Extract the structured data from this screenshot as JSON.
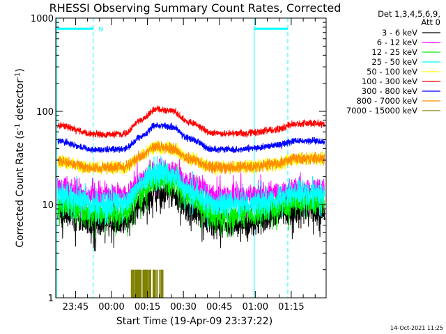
{
  "chart_data": {
    "type": "line",
    "title": "RHESSI Observing Summary Count Rates, Corrected",
    "xlabel": "Start Time (19-Apr-09 23:37:22)",
    "ylabel_main": "Corrected Count Rate (s",
    "ylabel_sup1": "-1",
    "ylabel_mid": " detector",
    "ylabel_sup2": "-1",
    "ylabel_end": ")",
    "yscale": "log",
    "ylim": [
      1,
      1000
    ],
    "xlim_minutes": [
      -15.63,
      97.2
    ],
    "x_ticks": [
      {
        "label": "23:45",
        "minutes": -7.37
      },
      {
        "label": "00:00",
        "minutes": 7.63
      },
      {
        "label": "00:15",
        "minutes": 22.63
      },
      {
        "label": "00:30",
        "minutes": 37.63
      },
      {
        "label": "00:45",
        "minutes": 52.63
      },
      {
        "label": "01:00",
        "minutes": 67.63
      },
      {
        "label": "01:15",
        "minutes": 82.63
      }
    ],
    "y_ticks": [
      {
        "label": "1",
        "value": 1
      },
      {
        "label": "10",
        "value": 10
      },
      {
        "label": "100",
        "value": 100
      },
      {
        "label": "1000",
        "value": 1000
      }
    ],
    "legend_header": [
      "Det 1,3,4,5,6,9,",
      "Att 0"
    ],
    "legend_placement": "right",
    "grid": false,
    "series": [
      {
        "name": "3 - 6 keV",
        "color": "#000000",
        "x": [
          -15,
          0,
          13,
          20,
          26,
          33,
          40,
          50,
          58,
          66,
          75,
          85,
          95
        ],
        "y": [
          8.0,
          6.5,
          6.5,
          10.5,
          13.5,
          13.0,
          9.0,
          6.2,
          6.2,
          6.4,
          7.5,
          8.5,
          8.5
        ]
      },
      {
        "name": "6 - 12 keV",
        "color": "#ff00ff",
        "x": [
          -15,
          0,
          13,
          20,
          26,
          33,
          40,
          50,
          58,
          66,
          75,
          85,
          95
        ],
        "y": [
          15.5,
          12.5,
          12.5,
          18.0,
          23.0,
          22.0,
          16.5,
          12.5,
          12.5,
          12.5,
          13.0,
          14.5,
          14.5
        ]
      },
      {
        "name": "12 - 25 keV",
        "color": "#00ee00",
        "x": [
          -15,
          0,
          13,
          20,
          26,
          33,
          40,
          50,
          58,
          66,
          75,
          85,
          95
        ],
        "y": [
          10.0,
          8.0,
          8.0,
          13.0,
          18.0,
          17.0,
          12.0,
          7.6,
          7.6,
          7.8,
          9.0,
          10.5,
          10.5
        ]
      },
      {
        "name": "25 - 50 keV",
        "color": "#00ffff",
        "x": [
          -15,
          0,
          13,
          20,
          26,
          33,
          40,
          50,
          58,
          66,
          75,
          85,
          95
        ],
        "y": [
          13.0,
          10.5,
          10.5,
          16.5,
          22.0,
          21.0,
          14.5,
          10.0,
          10.0,
          10.2,
          11.5,
          13.0,
          13.0
        ]
      },
      {
        "name": "50 - 100 keV",
        "color": "#ffff00",
        "x": [
          -15,
          0,
          13,
          20,
          26,
          33,
          40,
          50,
          58,
          66,
          75,
          85,
          95
        ],
        "y": [
          29.0,
          25.0,
          25.0,
          33.0,
          42.0,
          40.0,
          31.0,
          25.0,
          25.0,
          25.5,
          27.0,
          31.0,
          31.0
        ]
      },
      {
        "name": "100 - 300 keV",
        "color": "#ff0000",
        "x": [
          -15,
          0,
          13,
          20,
          26,
          33,
          40,
          50,
          58,
          66,
          75,
          85,
          95
        ],
        "y": [
          71.0,
          57.0,
          57.0,
          80.0,
          106.0,
          101.0,
          76.0,
          58.0,
          58.0,
          59.0,
          63.0,
          74.0,
          74.0
        ]
      },
      {
        "name": "300 - 800 keV",
        "color": "#0000ff",
        "x": [
          -15,
          0,
          13,
          20,
          26,
          33,
          40,
          50,
          58,
          66,
          75,
          85,
          95
        ],
        "y": [
          48.0,
          39.0,
          39.0,
          54.0,
          71.0,
          68.0,
          51.0,
          39.0,
          39.0,
          40.0,
          43.0,
          48.0,
          48.0
        ]
      },
      {
        "name": "800 - 7000 keV",
        "color": "#ff8c00",
        "x": [
          -15,
          0,
          13,
          20,
          26,
          33,
          40,
          50,
          58,
          66,
          75,
          85,
          95
        ],
        "y": [
          29.0,
          25.0,
          25.0,
          33.0,
          42.0,
          40.0,
          31.0,
          25.0,
          25.0,
          25.5,
          27.0,
          31.0,
          31.0
        ]
      },
      {
        "name": "7000 - 15000 keV",
        "color": "#808000",
        "x": [
          16,
          17,
          18,
          19,
          20,
          21,
          22,
          23,
          24,
          25,
          26,
          27,
          28,
          29
        ],
        "y": [
          2.0,
          1.0,
          2.0,
          1.0,
          2.0,
          2.0,
          1.0,
          2.0,
          1.0,
          2.0,
          2.0,
          1.0,
          2.0,
          1.0
        ]
      }
    ],
    "annotations": [
      {
        "label": "N",
        "minutes": 0.5
      }
    ],
    "overlays": [
      {
        "kind": "solid-vertical",
        "minutes": -15.2,
        "color": "#00ffff"
      },
      {
        "kind": "dashed-vertical",
        "minutes": 0.0,
        "color": "#00ffff"
      },
      {
        "kind": "solid-vertical",
        "minutes": 67.2,
        "color": "#00ffff"
      },
      {
        "kind": "dashed-vertical",
        "minutes": 81.2,
        "color": "#00ffff"
      },
      {
        "kind": "top-bar",
        "from": -15.2,
        "to": 0.0,
        "value": 770,
        "color": "#00ffff"
      },
      {
        "kind": "top-bar",
        "from": 67.2,
        "to": 81.2,
        "value": 770,
        "color": "#00ffff"
      }
    ]
  },
  "footer": {
    "timestamp": "14-Oct-2021 11:25"
  }
}
